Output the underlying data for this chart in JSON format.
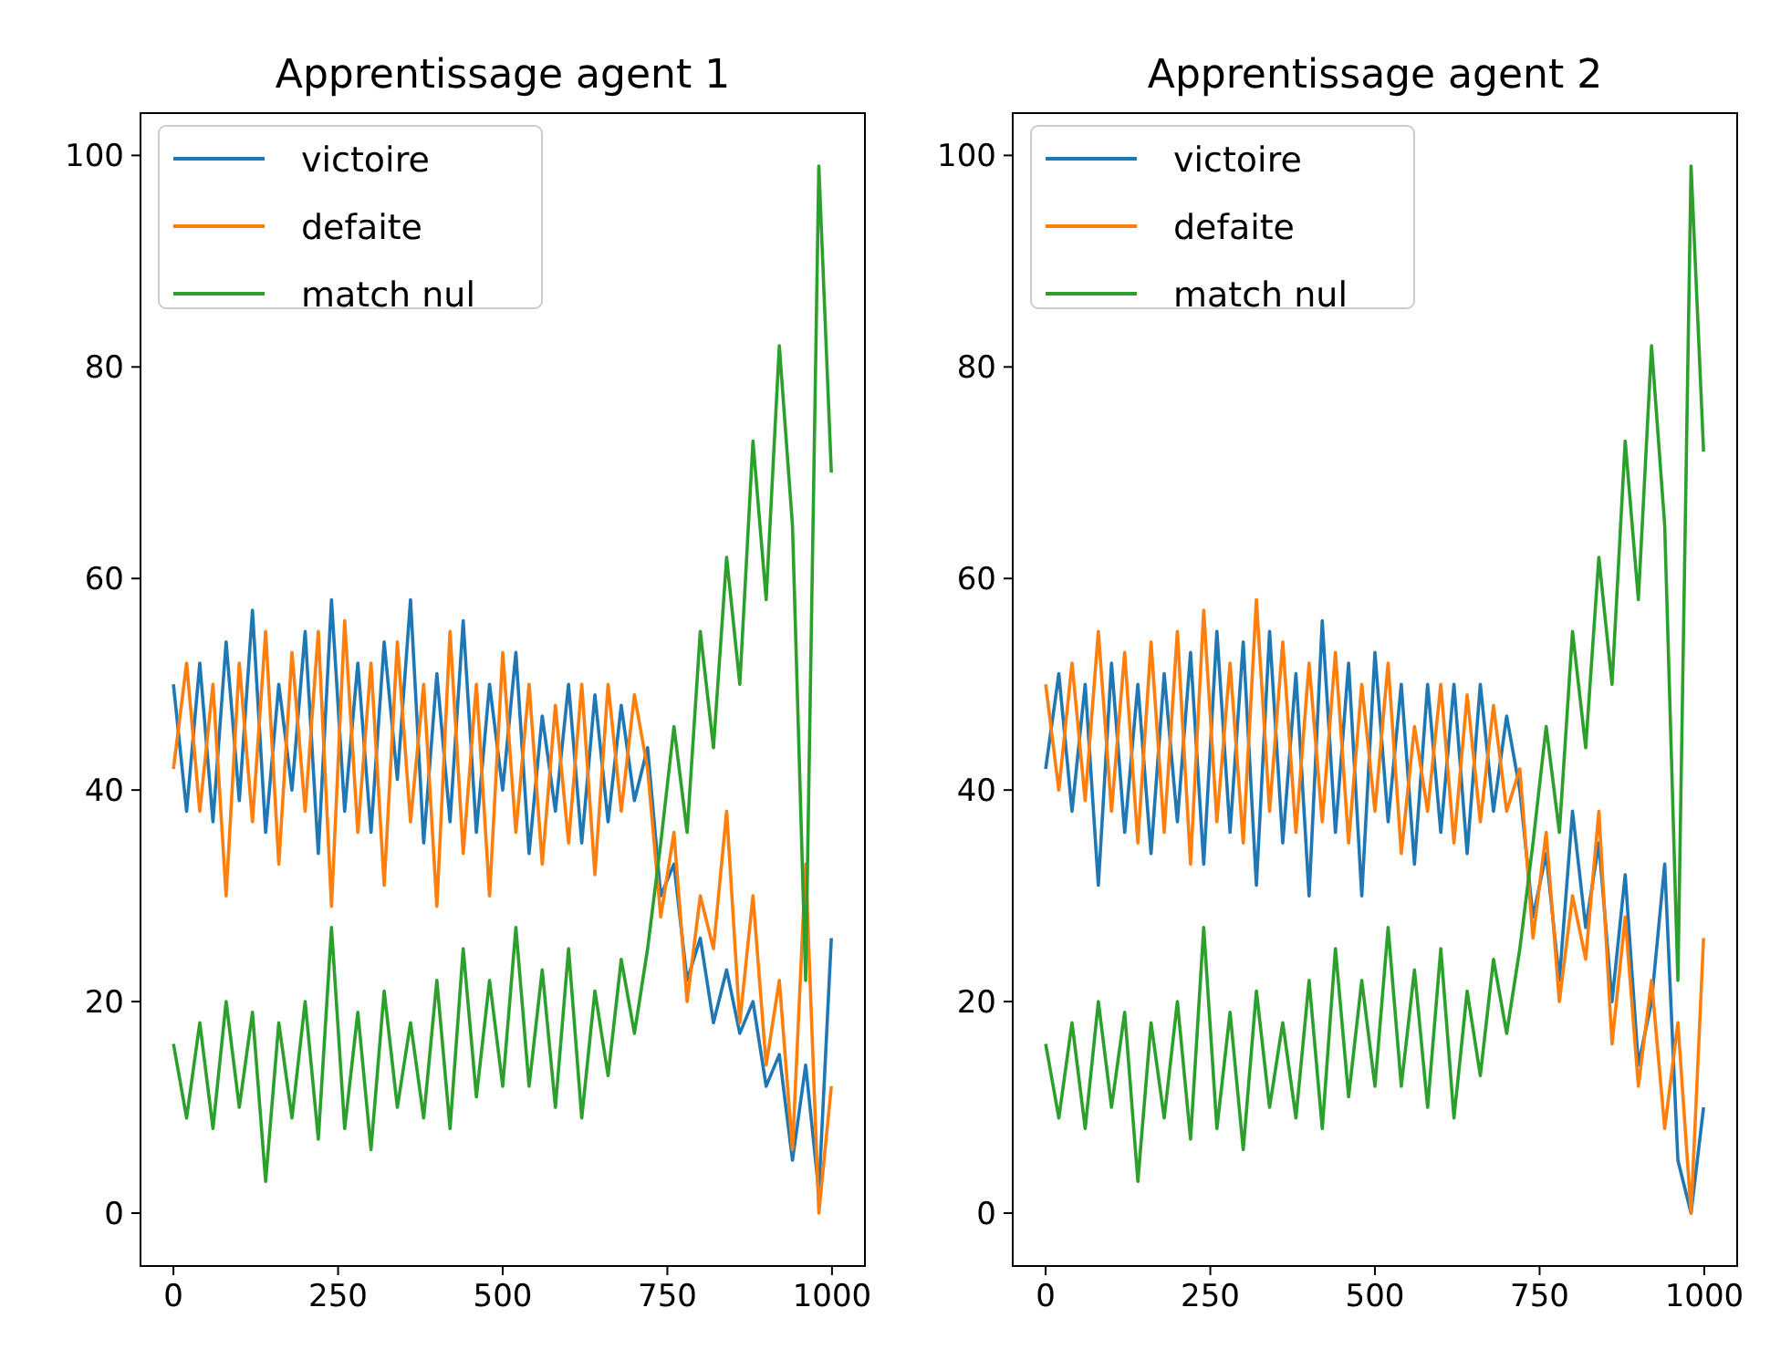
{
  "chart_data": [
    {
      "type": "line",
      "title": "Apprentissage agent 1",
      "x": [
        0,
        20,
        40,
        60,
        80,
        100,
        120,
        140,
        160,
        180,
        200,
        220,
        240,
        260,
        280,
        300,
        320,
        340,
        360,
        380,
        400,
        420,
        440,
        460,
        480,
        500,
        520,
        540,
        560,
        580,
        600,
        620,
        640,
        660,
        680,
        700,
        720,
        740,
        760,
        780,
        800,
        820,
        840,
        860,
        880,
        900,
        920,
        940,
        960,
        980,
        999
      ],
      "xlim": [
        -50,
        1050
      ],
      "xticks": [
        0,
        250,
        500,
        750,
        1000
      ],
      "ylim": [
        -5,
        104
      ],
      "yticks": [
        0,
        20,
        40,
        60,
        80,
        100
      ],
      "legend": "top left",
      "grid": false,
      "series": [
        {
          "name": "victoire",
          "color": "#1f77b4",
          "values": [
            50,
            38,
            52,
            37,
            54,
            39,
            57,
            36,
            50,
            40,
            55,
            34,
            58,
            38,
            52,
            36,
            54,
            41,
            58,
            35,
            51,
            37,
            56,
            36,
            50,
            40,
            53,
            34,
            47,
            38,
            50,
            35,
            49,
            37,
            48,
            39,
            44,
            30,
            33,
            22,
            26,
            18,
            23,
            17,
            20,
            12,
            15,
            5,
            14,
            2,
            26
          ]
        },
        {
          "name": "defaite",
          "color": "#ff7f0e",
          "values": [
            42,
            52,
            38,
            50,
            30,
            52,
            37,
            55,
            33,
            53,
            38,
            55,
            29,
            56,
            36,
            52,
            31,
            54,
            37,
            50,
            29,
            55,
            34,
            50,
            30,
            53,
            36,
            50,
            33,
            48,
            35,
            50,
            32,
            50,
            38,
            49,
            42,
            28,
            36,
            20,
            30,
            25,
            38,
            18,
            30,
            14,
            22,
            6,
            33,
            0,
            12
          ]
        },
        {
          "name": "match nul",
          "color": "#2ca02c",
          "values": [
            16,
            9,
            18,
            8,
            20,
            10,
            19,
            3,
            18,
            9,
            20,
            7,
            27,
            8,
            19,
            6,
            21,
            10,
            18,
            9,
            22,
            8,
            25,
            11,
            22,
            12,
            27,
            12,
            23,
            10,
            25,
            9,
            21,
            13,
            24,
            17,
            25,
            35,
            46,
            36,
            55,
            44,
            62,
            50,
            73,
            58,
            82,
            65,
            22,
            99,
            70
          ]
        }
      ]
    },
    {
      "type": "line",
      "title": "Apprentissage agent 2",
      "x": [
        0,
        20,
        40,
        60,
        80,
        100,
        120,
        140,
        160,
        180,
        200,
        220,
        240,
        260,
        280,
        300,
        320,
        340,
        360,
        380,
        400,
        420,
        440,
        460,
        480,
        500,
        520,
        540,
        560,
        580,
        600,
        620,
        640,
        660,
        680,
        700,
        720,
        740,
        760,
        780,
        800,
        820,
        840,
        860,
        880,
        900,
        920,
        940,
        960,
        980,
        999
      ],
      "xlim": [
        -50,
        1050
      ],
      "xticks": [
        0,
        250,
        500,
        750,
        1000
      ],
      "ylim": [
        -5,
        104
      ],
      "yticks": [
        0,
        20,
        40,
        60,
        80,
        100
      ],
      "legend": "top left",
      "grid": false,
      "series": [
        {
          "name": "victoire",
          "color": "#1f77b4",
          "values": [
            42,
            51,
            38,
            50,
            31,
            52,
            36,
            50,
            34,
            51,
            37,
            53,
            33,
            55,
            36,
            54,
            31,
            55,
            35,
            51,
            30,
            56,
            36,
            52,
            30,
            53,
            37,
            50,
            33,
            50,
            36,
            50,
            34,
            50,
            38,
            47,
            40,
            28,
            34,
            22,
            38,
            27,
            35,
            20,
            32,
            14,
            20,
            33,
            5,
            0,
            10
          ]
        },
        {
          "name": "defaite",
          "color": "#ff7f0e",
          "values": [
            50,
            40,
            52,
            39,
            55,
            38,
            53,
            35,
            54,
            36,
            55,
            33,
            57,
            37,
            52,
            35,
            58,
            38,
            54,
            36,
            52,
            37,
            53,
            35,
            50,
            38,
            52,
            34,
            46,
            38,
            50,
            35,
            49,
            37,
            48,
            38,
            42,
            26,
            36,
            20,
            30,
            24,
            38,
            16,
            28,
            12,
            22,
            8,
            18,
            0,
            26
          ]
        },
        {
          "name": "match nul",
          "color": "#2ca02c",
          "values": [
            16,
            9,
            18,
            8,
            20,
            10,
            19,
            3,
            18,
            9,
            20,
            7,
            27,
            8,
            19,
            6,
            21,
            10,
            18,
            9,
            22,
            8,
            25,
            11,
            22,
            12,
            27,
            12,
            23,
            10,
            25,
            9,
            21,
            13,
            24,
            17,
            25,
            35,
            46,
            36,
            55,
            44,
            62,
            50,
            73,
            58,
            82,
            65,
            22,
            99,
            72
          ]
        }
      ]
    }
  ]
}
